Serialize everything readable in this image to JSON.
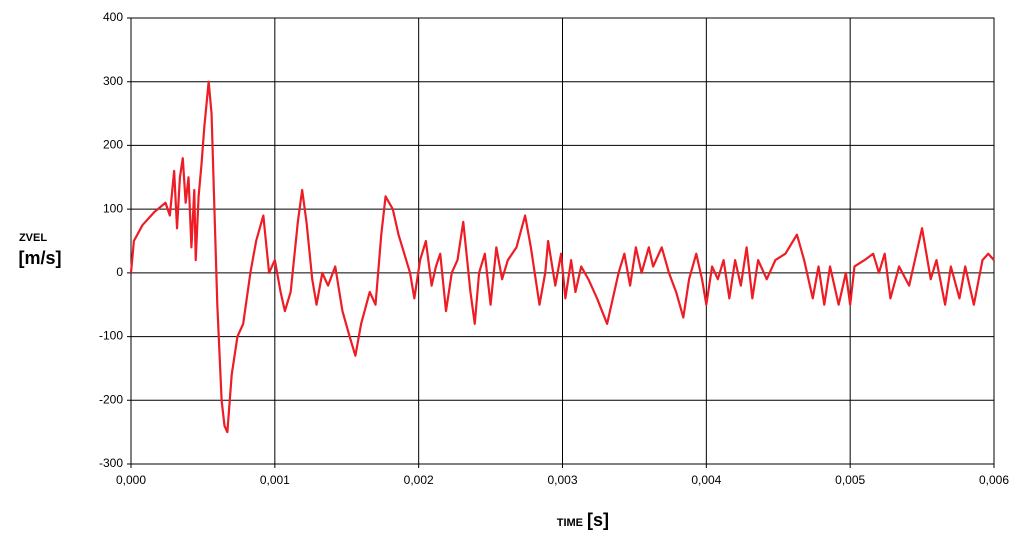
{
  "chart_data": {
    "type": "line",
    "y_label": "ZVEL",
    "y_unit": "[m/s]",
    "x_label": "TIME",
    "x_unit": "[s]",
    "xlim": [
      0,
      0.006
    ],
    "ylim": [
      -300,
      400
    ],
    "xticks": [
      {
        "value": 0,
        "label": "0,000"
      },
      {
        "value": 0.001,
        "label": "0,001"
      },
      {
        "value": 0.002,
        "label": "0,002"
      },
      {
        "value": 0.003,
        "label": "0,003"
      },
      {
        "value": 0.004,
        "label": "0,004"
      },
      {
        "value": 0.005,
        "label": "0,005"
      },
      {
        "value": 0.006,
        "label": "0,006"
      }
    ],
    "yticks": [
      -300,
      -200,
      -100,
      0,
      100,
      200,
      300,
      400
    ],
    "grid": true,
    "series": [
      {
        "color": "#ee1c25",
        "x": [
          0,
          2e-05,
          8e-05,
          0.00016,
          0.00024,
          0.00027,
          0.0003,
          0.00032,
          0.00034,
          0.00036,
          0.00038,
          0.0004,
          0.00042,
          0.00044,
          0.00045,
          0.00047,
          0.00049,
          0.00051,
          0.00054,
          0.00056,
          0.00058,
          0.0006,
          0.00063,
          0.00065,
          0.00067,
          0.0007,
          0.00074,
          0.00078,
          0.00083,
          0.00087,
          0.00092,
          0.00096,
          0.001,
          0.00104,
          0.00107,
          0.00111,
          0.00116,
          0.00119,
          0.00122,
          0.00126,
          0.00129,
          0.00133,
          0.00137,
          0.00142,
          0.00147,
          0.00152,
          0.00156,
          0.0016,
          0.00166,
          0.0017,
          0.00174,
          0.00177,
          0.00182,
          0.00186,
          0.0019,
          0.00194,
          0.00197,
          0.00201,
          0.00205,
          0.00209,
          0.00212,
          0.00215,
          0.00219,
          0.00223,
          0.00227,
          0.00231,
          0.00236,
          0.00239,
          0.00242,
          0.00246,
          0.0025,
          0.00254,
          0.00258,
          0.00262,
          0.00268,
          0.00274,
          0.00278,
          0.00284,
          0.00288,
          0.0029,
          0.00295,
          0.00299,
          0.00302,
          0.00306,
          0.00309,
          0.00313,
          0.00318,
          0.00324,
          0.00331,
          0.00335,
          0.00339,
          0.00343,
          0.00347,
          0.00351,
          0.00355,
          0.0036,
          0.00363,
          0.00369,
          0.00374,
          0.00379,
          0.00384,
          0.00388,
          0.00393,
          0.00397,
          0.004,
          0.00404,
          0.00408,
          0.00412,
          0.00416,
          0.0042,
          0.00424,
          0.00428,
          0.00432,
          0.00436,
          0.00442,
          0.00448,
          0.00455,
          0.00463,
          0.00468,
          0.00474,
          0.00478,
          0.00482,
          0.00486,
          0.00492,
          0.00497,
          0.005,
          0.00503,
          0.0051,
          0.00516,
          0.0052,
          0.00524,
          0.00528,
          0.00534,
          0.00541,
          0.0055,
          0.00556,
          0.0056,
          0.00566,
          0.0057,
          0.00576,
          0.0058,
          0.00586,
          0.00592,
          0.00596,
          0.006
        ],
        "values": [
          0,
          50,
          75,
          95,
          110,
          90,
          160,
          70,
          150,
          180,
          110,
          150,
          40,
          130,
          20,
          120,
          170,
          230,
          300,
          250,
          100,
          -50,
          -200,
          -240,
          -250,
          -160,
          -100,
          -80,
          0,
          50,
          90,
          0,
          20,
          -30,
          -60,
          -30,
          80,
          130,
          80,
          -10,
          -50,
          0,
          -20,
          10,
          -60,
          -100,
          -130,
          -80,
          -30,
          -50,
          60,
          120,
          100,
          60,
          30,
          0,
          -40,
          20,
          50,
          -20,
          10,
          30,
          -60,
          0,
          20,
          80,
          -30,
          -80,
          0,
          30,
          -50,
          40,
          -10,
          20,
          40,
          90,
          40,
          -50,
          0,
          50,
          -20,
          30,
          -40,
          20,
          -30,
          10,
          -10,
          -40,
          -80,
          -40,
          0,
          30,
          -20,
          40,
          0,
          40,
          10,
          40,
          0,
          -30,
          -70,
          -10,
          30,
          -10,
          -50,
          10,
          -10,
          20,
          -40,
          20,
          -20,
          40,
          -40,
          20,
          -10,
          20,
          30,
          60,
          20,
          -40,
          10,
          -50,
          10,
          -50,
          0,
          -50,
          10,
          20,
          30,
          0,
          30,
          -40,
          10,
          -20,
          70,
          -10,
          20,
          -50,
          10,
          -40,
          10,
          -50,
          20,
          30,
          20
        ]
      }
    ]
  }
}
